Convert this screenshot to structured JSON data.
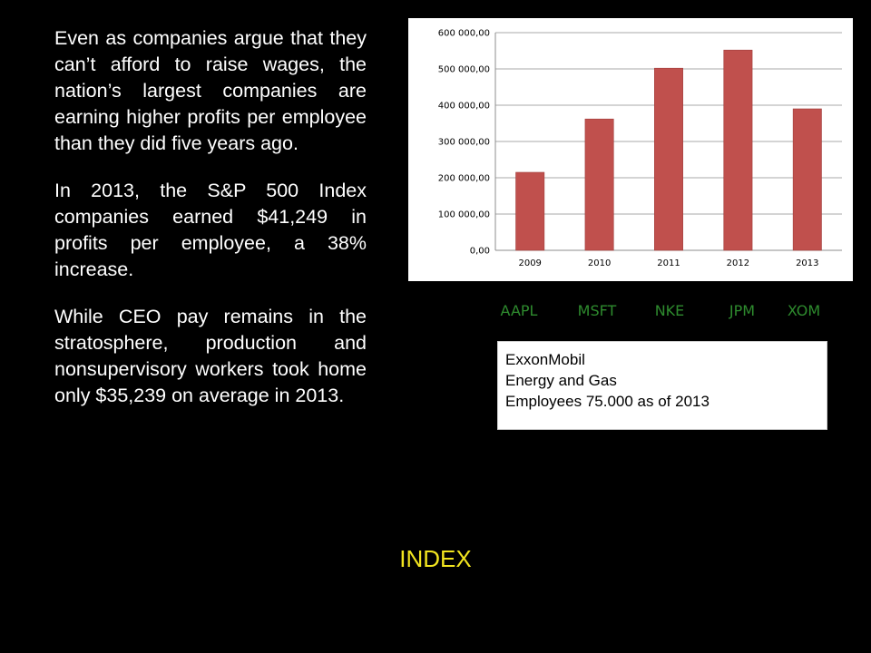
{
  "paragraphs": [
    "Even as companies argue that they can’t afford to raise wages, the nation’s largest companies are earning higher profits per employee than they did five years ago.",
    "In 2013, the S&P 500 Index companies earned $41,249 in profits per employee, a 38% increase.",
    "While CEO pay remains in the stratosphere, production and nonsupervisory workers took home only $35,239 on average in 2013."
  ],
  "chart_data": {
    "type": "bar",
    "categories": [
      "2009",
      "2010",
      "2011",
      "2012",
      "2013"
    ],
    "values": [
      215000,
      362000,
      502000,
      552000,
      390000
    ],
    "ylim": [
      0,
      600000
    ],
    "yticks": [
      {
        "value": 0,
        "label": "0,00"
      },
      {
        "value": 100000,
        "label": "100 000,00"
      },
      {
        "value": 200000,
        "label": "200 000,00"
      },
      {
        "value": 300000,
        "label": "300 000,00"
      },
      {
        "value": 400000,
        "label": "400 000,00"
      },
      {
        "value": 500000,
        "label": "500 000,00"
      },
      {
        "value": 600000,
        "label": "600 000,00"
      }
    ],
    "grid": true,
    "legend": "none",
    "bar_color": "#c0504d"
  },
  "tickers": [
    "AAPL",
    "MSFT",
    "NKE",
    "JPM",
    "XOM"
  ],
  "ticker_color": "#2e8b2e",
  "info_box": {
    "line1": "ExxonMobil",
    "line2": "Energy and Gas",
    "line3": "Employees 75.000 as of 2013"
  },
  "index_label": "INDEX",
  "index_color": "#f2e51f"
}
